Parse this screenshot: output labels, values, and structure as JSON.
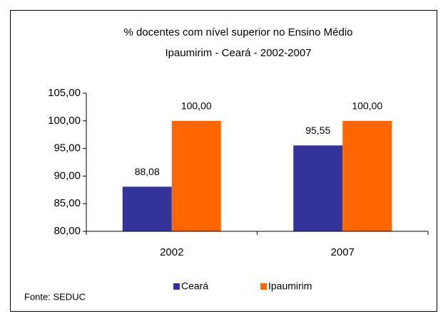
{
  "chart_data": {
    "type": "bar",
    "title": [
      "% docentes com nível superior no Ensino Médio",
      "Ipaumirim - Ceará - 2002-2007"
    ],
    "categories": [
      "2002",
      "2007"
    ],
    "series": [
      {
        "name": "Ceará",
        "color": "#333399",
        "values": [
          88.08,
          95.55
        ],
        "value_labels": [
          "88,08",
          "95,55"
        ]
      },
      {
        "name": "Ipaumirim",
        "color": "#ff6600",
        "values": [
          100,
          100
        ],
        "value_labels": [
          "100,00",
          "100,00"
        ]
      }
    ],
    "ylim": [
      80,
      105
    ],
    "yticks": [
      {
        "value": 80,
        "label": "80,00"
      },
      {
        "value": 85,
        "label": "85,00"
      },
      {
        "value": 90,
        "label": "90,00"
      },
      {
        "value": 95,
        "label": "95,00"
      },
      {
        "value": 100,
        "label": "100,00"
      },
      {
        "value": 105,
        "label": "105,00"
      }
    ],
    "legend": "bottom",
    "note": "Fonte: SEDUC"
  }
}
